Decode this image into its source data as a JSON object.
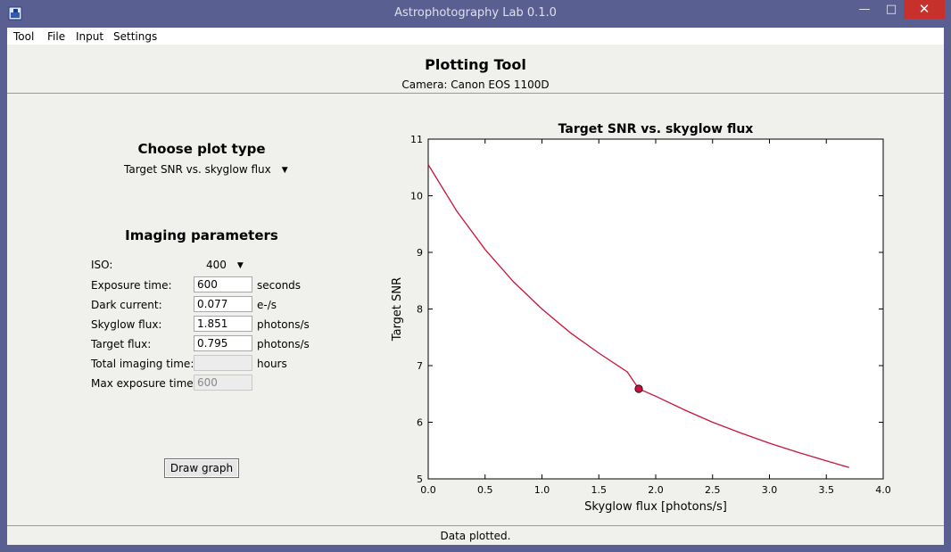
{
  "window": {
    "title": "Astrophotography Lab 0.1.0",
    "minimize_glyph": "—",
    "maximize_glyph": "□",
    "close_glyph": "✕"
  },
  "menu": [
    "Tool",
    "File",
    "Input",
    "Settings"
  ],
  "header": {
    "title": "Plotting Tool",
    "camera": "Camera: Canon EOS 1100D"
  },
  "plot_type": {
    "heading": "Choose plot type",
    "selected": "Target SNR vs. skyglow flux"
  },
  "imaging": {
    "heading": "Imaging parameters",
    "iso_label": "ISO:",
    "iso_value": "400",
    "fields": [
      {
        "label": "Exposure time:",
        "value": "600",
        "unit": "seconds"
      },
      {
        "label": "Dark current:",
        "value": "0.077",
        "unit": "e-/s"
      },
      {
        "label": "Skyglow flux:",
        "value": "1.851",
        "unit": "photons/s"
      },
      {
        "label": "Target flux:",
        "value": "0.795",
        "unit": "photons/s"
      },
      {
        "label": "Total imaging time:",
        "value": "",
        "unit": "hours"
      },
      {
        "label": "Max exposure time:",
        "value": "600",
        "unit": ""
      }
    ],
    "draw_button": "Draw graph"
  },
  "chart_data": {
    "type": "line",
    "title": "Target SNR vs. skyglow flux",
    "xlabel": "Skyglow flux [photons/s]",
    "ylabel": "Target SNR",
    "xlim": [
      0,
      4
    ],
    "ylim": [
      5,
      11
    ],
    "xticks": [
      "0.0",
      "0.5",
      "1.0",
      "1.5",
      "2.0",
      "2.5",
      "3.0",
      "3.5",
      "4.0"
    ],
    "yticks": [
      "5",
      "6",
      "7",
      "8",
      "9",
      "10",
      "11"
    ],
    "grid": false,
    "line_color": "#c8143c",
    "x": [
      0.0,
      0.25,
      0.5,
      0.75,
      1.0,
      1.25,
      1.5,
      1.75,
      1.851,
      2.0,
      2.25,
      2.5,
      2.75,
      3.0,
      3.25,
      3.5,
      3.7
    ],
    "y": [
      10.55,
      9.73,
      9.05,
      8.48,
      8.0,
      7.58,
      7.22,
      6.89,
      6.59,
      6.46,
      6.22,
      6.0,
      5.81,
      5.63,
      5.47,
      5.32,
      5.2
    ],
    "marker": {
      "x": 1.851,
      "y": 6.59
    }
  },
  "status": "Data plotted."
}
